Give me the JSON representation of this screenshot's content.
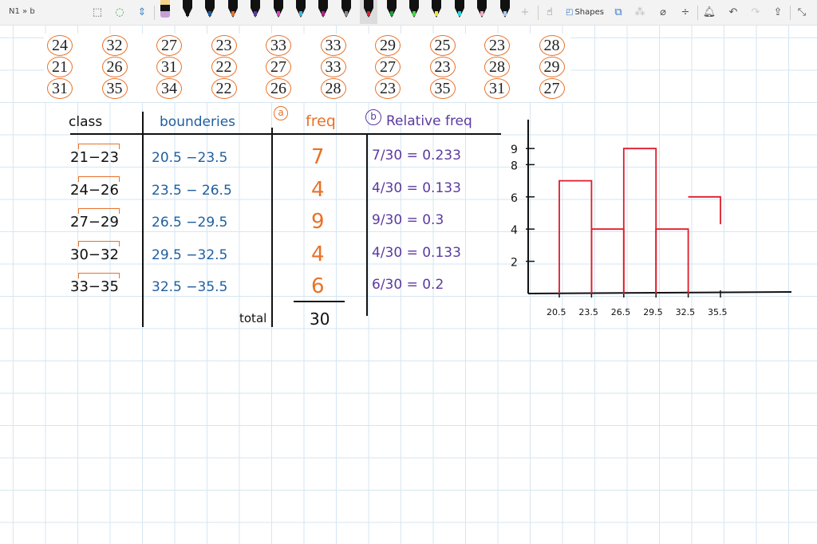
{
  "app": {
    "breadcrumb": "N1 » b"
  },
  "toolbar": {
    "shapes_label": "Shapes",
    "tools": [
      "lasso-select-icon",
      "add-space-icon",
      "eraser-icon"
    ],
    "pens": [
      {
        "color": "#111111",
        "nib": "#111111"
      },
      {
        "color": "#111111",
        "nib": "#1f5fa0"
      },
      {
        "color": "#111111",
        "nib": "#e8722a"
      },
      {
        "color": "#111111",
        "nib": "#5b3aa0"
      },
      {
        "color": "#111111",
        "nib": "#e040c8"
      },
      {
        "color": "#111111",
        "nib": "#38b6e8"
      },
      {
        "color": "#111111",
        "nib": "#b0208a"
      },
      {
        "color": "#111111",
        "nib": "#888888"
      },
      {
        "color": "#111111",
        "nib": "#e01b2a",
        "selected": true
      },
      {
        "color": "#111111",
        "nib": "#1f9a3a"
      },
      {
        "color": "#111111",
        "nib": "#3adc3a"
      },
      {
        "color": "#111111",
        "nib": "#f2ea1a"
      },
      {
        "color": "#111111",
        "nib": "#2ad6e0"
      },
      {
        "color": "#111111",
        "nib": "#f2a8c0"
      },
      {
        "color": "#111111",
        "nib": "#a8c8f0"
      }
    ]
  },
  "raw_data": [
    [
      "24",
      "32",
      "27",
      "23",
      "33",
      "33",
      "29",
      "25",
      "23",
      "28"
    ],
    [
      "21",
      "26",
      "31",
      "22",
      "27",
      "33",
      "27",
      "23",
      "28",
      "29"
    ],
    [
      "31",
      "35",
      "34",
      "22",
      "26",
      "28",
      "23",
      "35",
      "31",
      "27"
    ]
  ],
  "table": {
    "headers": {
      "class": "class",
      "boundaries": "bounderies",
      "part_a": "a",
      "freq": "freq",
      "part_b": "b",
      "rel_freq": "Relative freq"
    },
    "rows": [
      {
        "class": "21−23",
        "boundaries": "20.5 −23.5",
        "freq": "7",
        "rel": "7/30 = 0.233"
      },
      {
        "class": "24−26",
        "boundaries": "23.5 − 26.5",
        "freq": "4",
        "rel": "4/30 = 0.133"
      },
      {
        "class": "27−29",
        "boundaries": "26.5 −29.5",
        "freq": "9",
        "rel": "9/30 = 0.3"
      },
      {
        "class": "30−32",
        "boundaries": "29.5 −32.5",
        "freq": "4",
        "rel": "4/30 = 0.133"
      },
      {
        "class": "33−35",
        "boundaries": "32.5 −35.5",
        "freq": "6",
        "rel": "6/30 = 0.2"
      }
    ],
    "total_label": "total",
    "total": "30"
  },
  "chart_data": {
    "type": "bar",
    "title": "",
    "xlabel": "",
    "ylabel": "",
    "x_ticks": [
      "20.5",
      "23.5",
      "26.5",
      "29.5",
      "32.5",
      "35.5"
    ],
    "bins": [
      [
        20.5,
        23.5
      ],
      [
        23.5,
        26.5
      ],
      [
        26.5,
        29.5
      ],
      [
        29.5,
        32.5
      ],
      [
        32.5,
        35.5
      ]
    ],
    "values": [
      7,
      4,
      9,
      4,
      6
    ],
    "y_ticks": [
      "2",
      "4",
      "6",
      "8",
      "9"
    ],
    "ylim": [
      0,
      10
    ],
    "bar_color": "#e01b2a",
    "grid": false
  }
}
